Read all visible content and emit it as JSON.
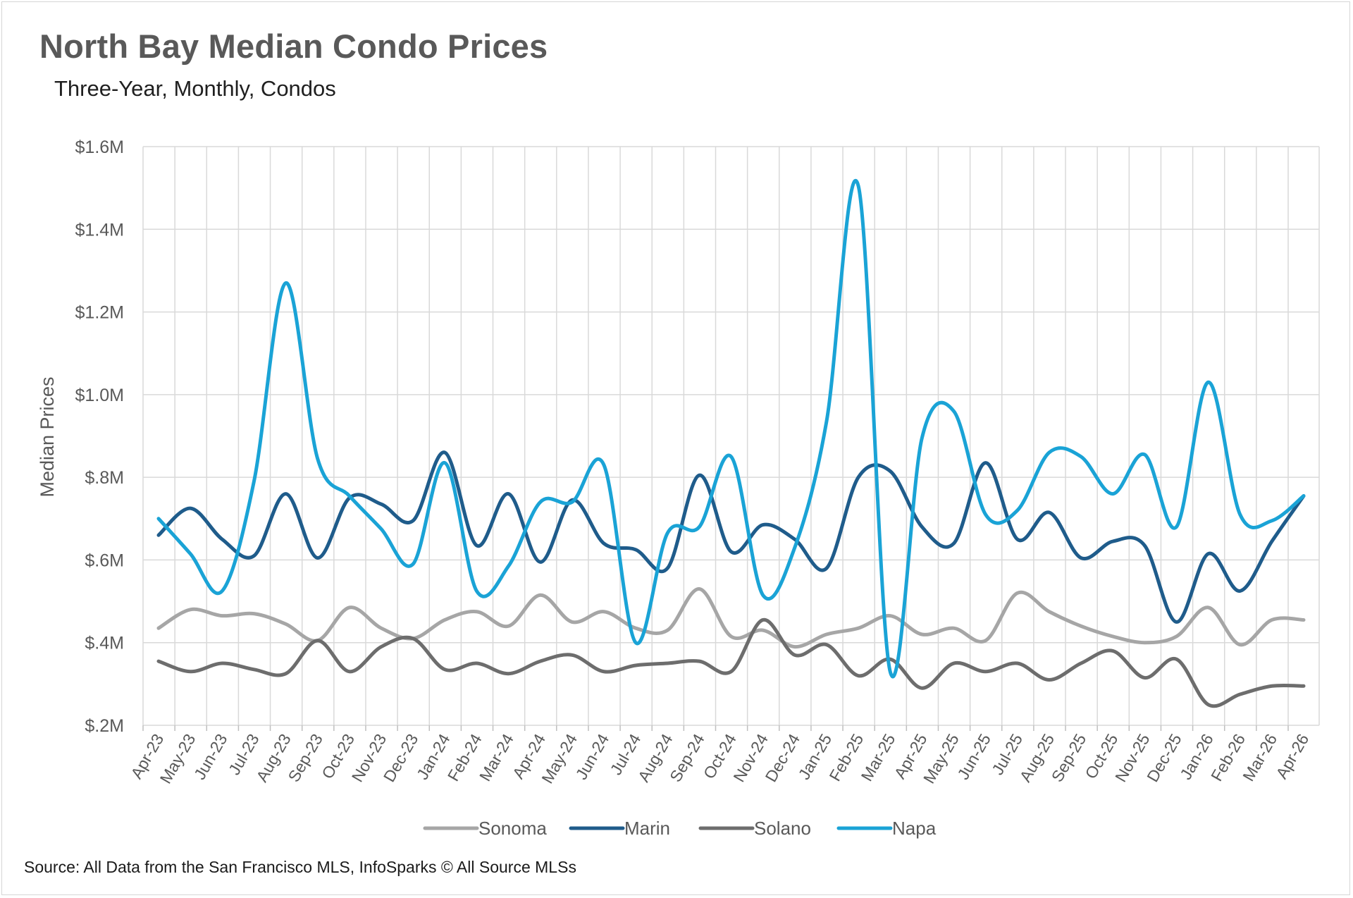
{
  "chart_data": {
    "type": "line",
    "title": "North Bay Median Condo Prices",
    "subtitle": "Three-Year, Monthly, Condos",
    "ylabel": "Median Prices",
    "xlabel": "",
    "source": "Source: All Data from the San Francisco MLS, InfoSparks © All Source MLSs",
    "ylim": [
      0.2,
      1.6
    ],
    "yticks": [
      {
        "value": 1.6,
        "label": "$1.6M"
      },
      {
        "value": 1.4,
        "label": "$1.4M"
      },
      {
        "value": 1.2,
        "label": "$1.2M"
      },
      {
        "value": 1.0,
        "label": "$1.0M"
      },
      {
        "value": 0.8,
        "label": "$.8M"
      },
      {
        "value": 0.6,
        "label": "$.6M"
      },
      {
        "value": 0.4,
        "label": "$.4M"
      },
      {
        "value": 0.2,
        "label": "$.2M"
      }
    ],
    "grid": true,
    "legend_position": "bottom",
    "categories": [
      "Apr-23",
      "May-23",
      "Jun-23",
      "Jul-23",
      "Aug-23",
      "Sep-23",
      "Oct-23",
      "Nov-23",
      "Dec-23",
      "Jan-24",
      "Feb-24",
      "Mar-24",
      "Apr-24",
      "May-24",
      "Jun-24",
      "Jul-24",
      "Aug-24",
      "Sep-24",
      "Oct-24",
      "Nov-24",
      "Dec-24",
      "Jan-25",
      "Feb-25",
      "Mar-25",
      "Apr-25",
      "May-25",
      "Jun-25",
      "Jul-25",
      "Aug-25",
      "Sep-25",
      "Oct-25",
      "Nov-25",
      "Dec-25",
      "Jan-26",
      "Feb-26",
      "Mar-26",
      "Apr-26"
    ],
    "series": [
      {
        "name": "Sonoma",
        "color": "#a6a6a6",
        "values": [
          0.435,
          0.48,
          0.465,
          0.47,
          0.445,
          0.405,
          0.485,
          0.435,
          0.41,
          0.455,
          0.475,
          0.44,
          0.515,
          0.45,
          0.475,
          0.435,
          0.43,
          0.53,
          0.415,
          0.43,
          0.39,
          0.42,
          0.435,
          0.465,
          0.42,
          0.435,
          0.405,
          0.52,
          0.475,
          0.44,
          0.415,
          0.4,
          0.415,
          0.485,
          0.395,
          0.455,
          0.455
        ]
      },
      {
        "name": "Marin",
        "color": "#1f5c8b",
        "values": [
          0.66,
          0.725,
          0.65,
          0.61,
          0.76,
          0.605,
          0.75,
          0.735,
          0.695,
          0.86,
          0.635,
          0.76,
          0.595,
          0.745,
          0.64,
          0.625,
          0.58,
          0.805,
          0.62,
          0.685,
          0.65,
          0.58,
          0.8,
          0.815,
          0.68,
          0.64,
          0.835,
          0.65,
          0.715,
          0.605,
          0.645,
          0.635,
          0.45,
          0.615,
          0.525,
          0.645,
          0.755
        ]
      },
      {
        "name": "Solano",
        "color": "#6d6d6d",
        "values": [
          0.355,
          0.33,
          0.35,
          0.335,
          0.325,
          0.405,
          0.33,
          0.39,
          0.41,
          0.335,
          0.35,
          0.325,
          0.355,
          0.37,
          0.33,
          0.345,
          0.35,
          0.355,
          0.33,
          0.455,
          0.37,
          0.395,
          0.32,
          0.36,
          0.29,
          0.35,
          0.33,
          0.35,
          0.31,
          0.35,
          0.38,
          0.315,
          0.36,
          0.25,
          0.275,
          0.295,
          0.295
        ]
      },
      {
        "name": "Napa",
        "color": "#1aa3d6",
        "values": [
          0.7,
          0.615,
          0.525,
          0.79,
          1.27,
          0.845,
          0.755,
          0.675,
          0.59,
          0.835,
          0.525,
          0.585,
          0.74,
          0.74,
          0.83,
          0.4,
          0.665,
          0.68,
          0.85,
          0.515,
          0.63,
          0.935,
          1.505,
          0.33,
          0.895,
          0.96,
          0.71,
          0.72,
          0.86,
          0.85,
          0.76,
          0.855,
          0.68,
          1.03,
          0.71,
          0.695,
          0.755
        ]
      }
    ]
  }
}
